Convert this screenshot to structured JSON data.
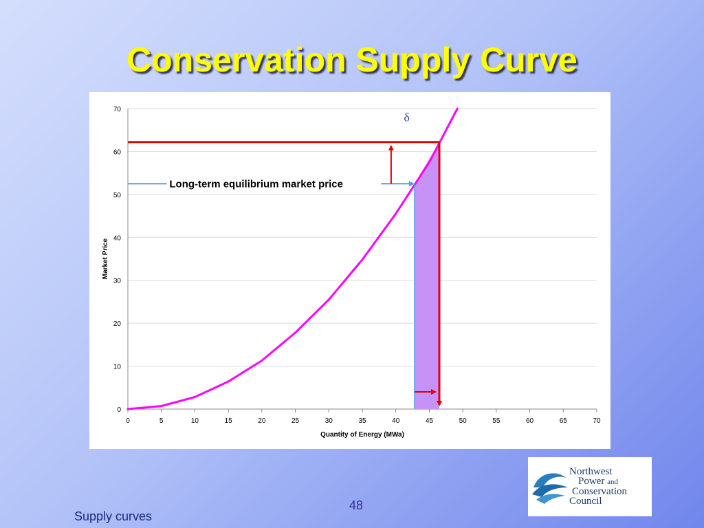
{
  "slide": {
    "title": "Conservation Supply Curve",
    "number": "48",
    "footer": "Supply curves"
  },
  "logo": {
    "line1": "Northwest",
    "line2": "Power",
    "line2_and": "and",
    "line3": "Conservation",
    "line4": "Council"
  },
  "chart_data": {
    "type": "line",
    "xlabel": "Quantity of Energy (MWa)",
    "ylabel": "Market Price",
    "xlim": [
      0,
      70
    ],
    "ylim": [
      0,
      70
    ],
    "x_ticks": [
      0,
      5,
      10,
      15,
      20,
      25,
      30,
      35,
      40,
      45,
      50,
      55,
      60,
      65,
      70
    ],
    "y_ticks": [
      0,
      10,
      20,
      30,
      40,
      50,
      60,
      70
    ],
    "grid": "horizontal",
    "series": [
      {
        "color": "#ff00ff",
        "x": [
          0,
          5,
          10,
          15,
          20,
          25,
          30,
          35,
          40,
          45,
          49.2
        ],
        "y": [
          0,
          0.7,
          2.8,
          6.4,
          11.3,
          17.8,
          25.5,
          34.8,
          45.5,
          57.5,
          70
        ]
      }
    ],
    "annotations": {
      "equilibrium_label": "Long-term equilibrium market price",
      "equilibrium_price": 52.5,
      "equilibrium_quantity": 42.8,
      "higher_price": 62.2,
      "higher_quantity": 46.5,
      "delta_symbol": "δ",
      "arrow_color": "#e00000",
      "line_color": "#4f9fe8",
      "shade_color": "#c792f5"
    }
  }
}
